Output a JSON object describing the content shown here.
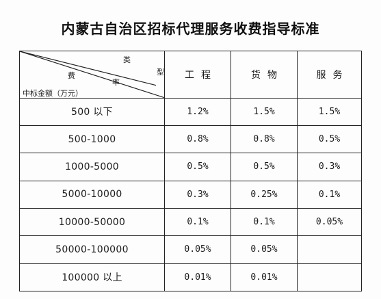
{
  "document": {
    "title": "内蒙古自治区招标代理服务收费指导标准"
  },
  "table": {
    "corner": {
      "lei": "类",
      "xing": "型",
      "fei": "费",
      "lv": "率",
      "amount_label": "中标金额（万元）"
    },
    "columns": [
      "工程",
      "货物",
      "服务"
    ],
    "rows": [
      {
        "amount": "500 以下",
        "values": [
          "1.2%",
          "1.5%",
          "1.5%"
        ]
      },
      {
        "amount": "500-1000",
        "values": [
          "0.8%",
          "0.8%",
          "0.5%"
        ]
      },
      {
        "amount": "1000-5000",
        "values": [
          "0.5%",
          "0.5%",
          "0.3%"
        ]
      },
      {
        "amount": "5000-10000",
        "values": [
          "0.3%",
          "0.25%",
          "0.1%"
        ]
      },
      {
        "amount": "10000-50000",
        "values": [
          "0.1%",
          "0.1%",
          "0.05%"
        ]
      },
      {
        "amount": "50000-100000",
        "values": [
          "0.05%",
          "0.05%",
          ""
        ]
      },
      {
        "amount": "100000 以上",
        "values": [
          "0.01%",
          "0.01%",
          ""
        ]
      }
    ]
  }
}
